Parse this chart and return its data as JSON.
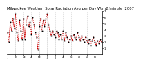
{
  "title": "Milwaukee Weather  Solar Radiation Avg per Day W/m2/minute  2007",
  "y_values": [
    3.5,
    2.0,
    5.2,
    3.8,
    5.8,
    4.2,
    6.5,
    3.5,
    2.2,
    5.5,
    3.8,
    2.5,
    5.8,
    2.5,
    4.8,
    6.2,
    4.5,
    5.2,
    3.2,
    6.0,
    4.8,
    3.5,
    2.8,
    0.8,
    4.5,
    5.8,
    3.8,
    5.5,
    4.5,
    5.8,
    6.5,
    4.8,
    3.8,
    3.0,
    3.8,
    3.2,
    2.8,
    3.8,
    3.5,
    2.5,
    3.2,
    2.5,
    3.8,
    2.2,
    3.5,
    2.8,
    2.0,
    2.5,
    3.0,
    2.2,
    3.2,
    2.8,
    2.5,
    3.5,
    2.8,
    2.2,
    3.0,
    2.5,
    2.0,
    2.8,
    2.2,
    1.8,
    2.5,
    1.5,
    2.2,
    2.8,
    2.0,
    1.5,
    2.2,
    1.8,
    2.5,
    2.0
  ],
  "x_tick_positions": [
    0,
    6,
    12,
    18,
    24,
    30,
    36,
    42,
    48,
    54,
    60,
    66
  ],
  "x_tick_labels": [
    "J",
    "F",
    "M",
    "A",
    "M",
    "J",
    "J",
    "A",
    "S",
    "O",
    "N",
    "D"
  ],
  "line_color": "#cc0000",
  "marker_color": "#000000",
  "grid_color": "#999999",
  "background_color": "#ffffff",
  "ylim": [
    0,
    7
  ],
  "yticks": [
    1,
    2,
    3,
    4,
    5,
    6,
    7
  ],
  "title_fontsize": 3.8,
  "tick_fontsize": 3.0
}
